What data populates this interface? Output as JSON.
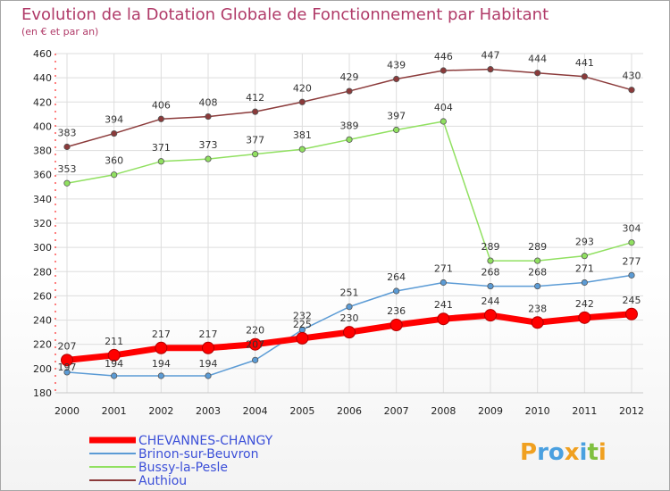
{
  "chart_data": {
    "type": "line",
    "title": "Evolution de la Dotation Globale de Fonctionnement par Habitant",
    "subtitle": "(en € et par an)",
    "xlabel": "",
    "ylabel": "",
    "categories": [
      "2000",
      "2001",
      "2002",
      "2003",
      "2004",
      "2005",
      "2006",
      "2007",
      "2008",
      "2009",
      "2010",
      "2011",
      "2012"
    ],
    "ylim": [
      180,
      460
    ],
    "yticks": [
      180,
      200,
      220,
      240,
      260,
      280,
      300,
      320,
      340,
      360,
      380,
      400,
      420,
      440,
      460
    ],
    "grid": true,
    "legend_position": "bottom-left",
    "series": [
      {
        "name": "CHEVANNES-CHANGY",
        "color": "#ff0000",
        "values": [
          207,
          211,
          217,
          217,
          220,
          225,
          230,
          236,
          241,
          244,
          238,
          242,
          245
        ]
      },
      {
        "name": "Brinon-sur-Beuvron",
        "color": "#5b9bd5",
        "values": [
          197,
          194,
          194,
          194,
          207,
          232,
          251,
          264,
          271,
          268,
          268,
          271,
          277
        ]
      },
      {
        "name": "Bussy-la-Pesle",
        "color": "#90e060",
        "values": [
          353,
          360,
          371,
          373,
          377,
          381,
          389,
          397,
          404,
          289,
          289,
          293,
          304
        ]
      },
      {
        "name": "Authiou",
        "color": "#8b3a3a",
        "values": [
          383,
          394,
          406,
          408,
          412,
          420,
          429,
          439,
          446,
          447,
          444,
          441,
          430
        ]
      }
    ]
  },
  "brand": {
    "logo_text": "Proxiti"
  }
}
